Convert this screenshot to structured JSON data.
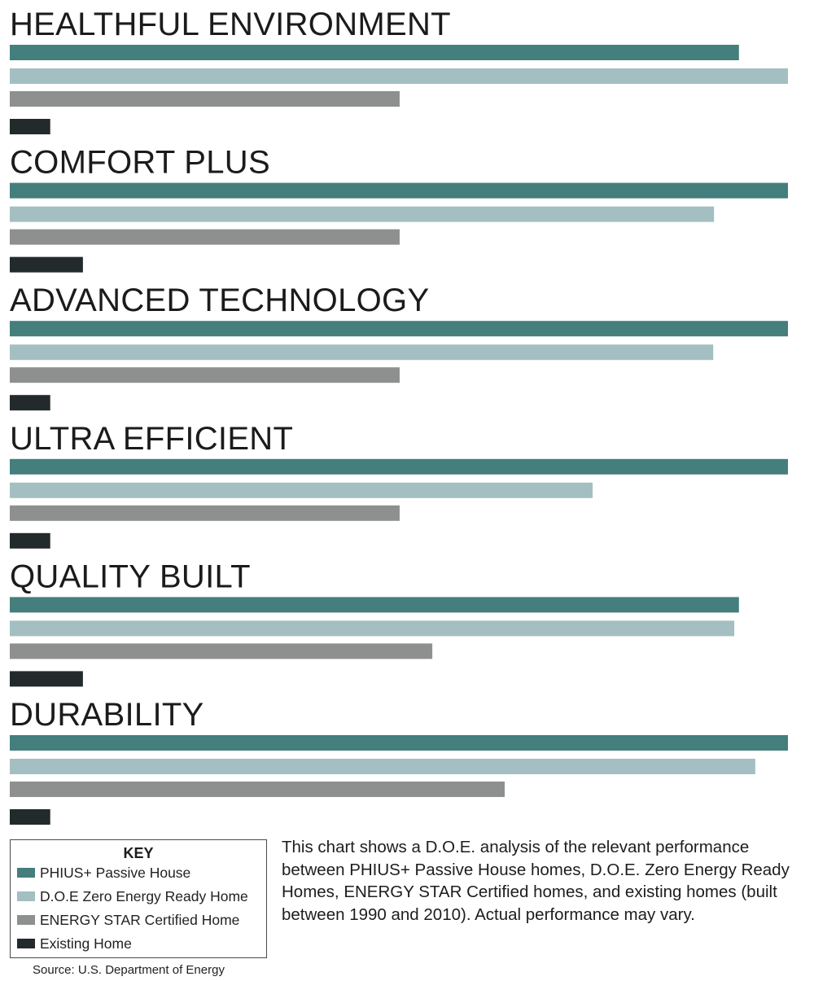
{
  "chart_data": {
    "type": "bar",
    "orientation": "horizontal",
    "categories": [
      "HEALTHFUL ENVIRONMENT",
      "COMFORT PLUS",
      "ADVANCED TECHNOLOGY",
      "ULTRA EFFICIENT",
      "QUALITY BUILT",
      "DURABILITY"
    ],
    "series": [
      {
        "name": "PHIUS+ Passive House",
        "color": "#447e7d",
        "values": [
          93.7,
          100,
          100,
          100,
          93.7,
          100
        ]
      },
      {
        "name": "D.O.E Zero Energy Ready Home",
        "color": "#a3bfc1",
        "values": [
          100,
          90.5,
          90.4,
          74.9,
          93.1,
          95.8
        ]
      },
      {
        "name": "ENERGY STAR Certified Home",
        "color": "#8e9090",
        "values": [
          50.1,
          50.1,
          50.1,
          50.1,
          54.3,
          63.6
        ]
      },
      {
        "name": "Existing Home",
        "color": "#232a2c",
        "values": [
          5.2,
          9.4,
          5.2,
          5.2,
          9.4,
          5.2
        ]
      }
    ],
    "xlim": [
      0,
      100
    ],
    "axes_shown": false,
    "grid": false,
    "legend_title": "KEY",
    "legend_position": "bottom-left"
  },
  "description_text": "This chart shows a D.O.E. analysis of the relevant performance between PHIUS+ Passive House homes, D.O.E. Zero Energy Ready Homes, ENERGY STAR Certified homes, and existing homes (built between 1990 and 2010). Actual performance may vary.",
  "source_text": "Source: U.S. Department of Energy"
}
